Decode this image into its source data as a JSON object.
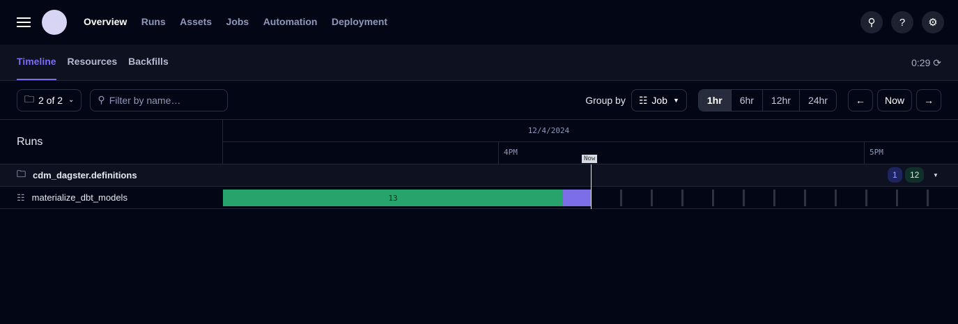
{
  "nav": {
    "items": [
      "Overview",
      "Runs",
      "Assets",
      "Jobs",
      "Automation",
      "Deployment"
    ],
    "active": "Overview",
    "icons": [
      "search-icon",
      "help-icon",
      "gear-icon"
    ]
  },
  "tabs": {
    "items": [
      "Timeline",
      "Resources",
      "Backfills"
    ],
    "active": "Timeline"
  },
  "refresh": {
    "countdown": "0:29",
    "icon": "refresh-icon"
  },
  "toolbar": {
    "filter_count": "2 of 2",
    "search_placeholder": "Filter by name…",
    "group_by_label": "Group by",
    "group_by_value": "Job",
    "ranges": [
      "1hr",
      "6hr",
      "12hr",
      "24hr"
    ],
    "active_range": "1hr",
    "now_label": "Now"
  },
  "timeline": {
    "runs_header": "Runs",
    "date": "12/4/2024",
    "hours": [
      "4PM",
      "5PM"
    ],
    "now_marker": "Now",
    "group": {
      "name": "cdm_dagster.definitions",
      "badge_running": "1",
      "badge_success": "12"
    },
    "job": {
      "name": "materialize_dbt_models",
      "success_count": "13"
    },
    "colors": {
      "success": "#26a46b",
      "running": "#7b6ee6",
      "scheduled": "#2e3342"
    }
  }
}
